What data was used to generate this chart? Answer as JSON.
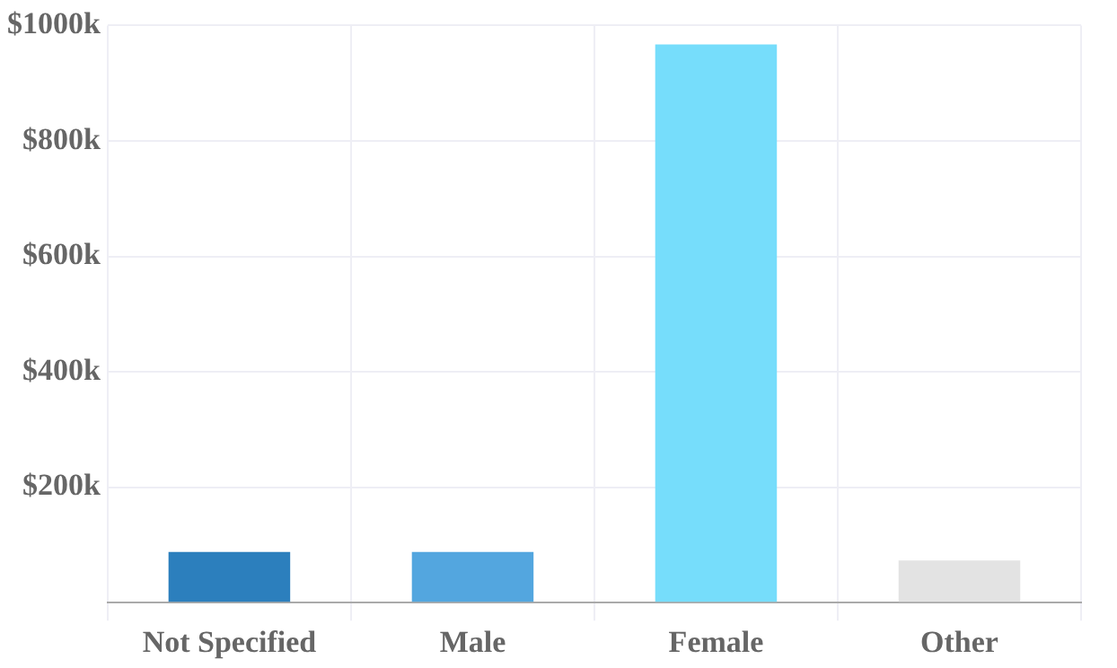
{
  "chart_data": {
    "type": "bar",
    "categories": [
      "Not Specified",
      "Male",
      "Female",
      "Other"
    ],
    "values": [
      88,
      88,
      967,
      73
    ],
    "colors": [
      "#2c7fbd",
      "#53a6df",
      "#76ddfb",
      "#e3e3e3"
    ],
    "ylim": [
      0,
      1000
    ],
    "yticks": [
      {
        "value": 0,
        "label": null
      },
      {
        "value": 200,
        "label": "$200k"
      },
      {
        "value": 400,
        "label": "$400k"
      },
      {
        "value": 600,
        "label": "$600k"
      },
      {
        "value": 800,
        "label": "$800k"
      },
      {
        "value": 1000,
        "label": "$1000k"
      }
    ],
    "grid": true,
    "legend": false
  }
}
